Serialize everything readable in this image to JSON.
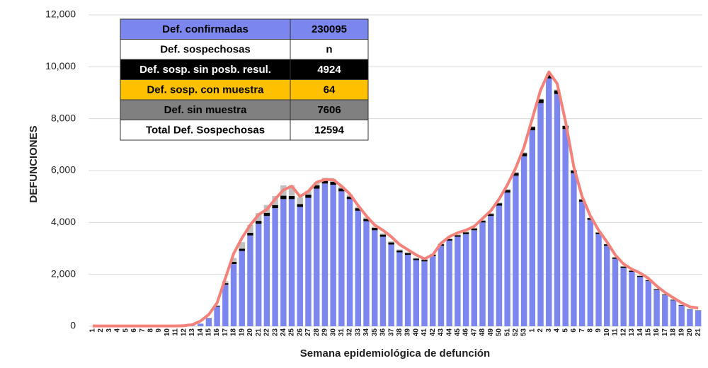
{
  "chart_data": {
    "type": "stacked_bar",
    "y_label": "DEFUNCIONES",
    "x_label": "Semana epidemiológica de defunción",
    "categories": [
      "1",
      "2",
      "3",
      "4",
      "5",
      "6",
      "7",
      "8",
      "9",
      "10",
      "11",
      "12",
      "13",
      "14",
      "15",
      "16",
      "17",
      "18",
      "19",
      "20",
      "21",
      "22",
      "23",
      "24",
      "25",
      "26",
      "27",
      "28",
      "29",
      "30",
      "31",
      "32",
      "33",
      "34",
      "35",
      "36",
      "37",
      "38",
      "39",
      "40",
      "41",
      "42",
      "43",
      "44",
      "45",
      "46",
      "47",
      "48",
      "49",
      "50",
      "51",
      "52",
      "53",
      "1",
      "2",
      "3",
      "4",
      "5",
      "6",
      "7",
      "8",
      "9",
      "10",
      "11",
      "12",
      "13",
      "14",
      "15",
      "16",
      "17",
      "18",
      "19",
      "20",
      "21"
    ],
    "series": [
      {
        "color": "#7b87ee",
        "values": [
          0,
          0,
          0,
          0,
          0,
          0,
          0,
          0,
          0,
          0,
          0,
          5,
          20,
          100,
          300,
          750,
          1600,
          2400,
          2900,
          3500,
          3950,
          4250,
          4550,
          4900,
          4900,
          4600,
          4950,
          5300,
          5500,
          5450,
          5200,
          4900,
          4450,
          4050,
          3700,
          3450,
          3150,
          2850,
          2750,
          2550,
          2500,
          2700,
          3100,
          3300,
          3450,
          3550,
          3700,
          4000,
          4250,
          4650,
          5150,
          5800,
          6550,
          7550,
          8600,
          9550,
          8950,
          7600,
          5900,
          4800,
          4100,
          3550,
          3100,
          2600,
          2250,
          2100,
          1900,
          1750,
          1400,
          1200,
          1000,
          800,
          650,
          600
        ]
      },
      {
        "color": "#000000",
        "values": [
          0,
          0,
          0,
          0,
          0,
          0,
          0,
          0,
          0,
          0,
          0,
          0,
          0,
          0,
          10,
          30,
          60,
          80,
          90,
          100,
          110,
          120,
          120,
          130,
          120,
          110,
          120,
          130,
          120,
          120,
          110,
          100,
          100,
          90,
          90,
          80,
          80,
          70,
          70,
          60,
          60,
          60,
          60,
          60,
          60,
          70,
          70,
          70,
          80,
          90,
          100,
          110,
          120,
          130,
          140,
          150,
          140,
          120,
          100,
          80,
          70,
          60,
          60,
          50,
          50,
          40,
          40,
          30,
          30,
          20,
          20,
          20,
          10,
          10
        ]
      },
      {
        "color": "#ffc000",
        "values": [
          0,
          0,
          0,
          0,
          0,
          0,
          0,
          0,
          0,
          0,
          0,
          0,
          0,
          0,
          0,
          0,
          0,
          1,
          1,
          1,
          1,
          1,
          1,
          1,
          1,
          1,
          1,
          1,
          1,
          1,
          1,
          1,
          1,
          1,
          1,
          1,
          1,
          1,
          1,
          1,
          1,
          1,
          1,
          1,
          1,
          1,
          1,
          1,
          1,
          1,
          1,
          1,
          1,
          1,
          1,
          1,
          1,
          1,
          1,
          1,
          1,
          1,
          1,
          1,
          1,
          1,
          1,
          1,
          1,
          1,
          1,
          1,
          1,
          1
        ]
      },
      {
        "color": "#c0c0c0",
        "values": [
          0,
          0,
          0,
          0,
          0,
          0,
          0,
          0,
          0,
          0,
          0,
          0,
          0,
          0,
          10,
          30,
          80,
          150,
          250,
          300,
          300,
          300,
          350,
          400,
          400,
          250,
          150,
          120,
          100,
          100,
          80,
          70,
          60,
          50,
          50,
          50,
          40,
          40,
          30,
          30,
          30,
          30,
          30,
          30,
          30,
          30,
          30,
          30,
          30,
          30,
          30,
          30,
          30,
          30,
          30,
          30,
          30,
          30,
          30,
          30,
          20,
          20,
          20,
          20,
          20,
          20,
          20,
          10,
          10,
          10,
          10,
          10,
          10,
          10
        ]
      }
    ],
    "line": {
      "color": "#f4827a",
      "values": [
        10,
        10,
        10,
        10,
        10,
        10,
        10,
        10,
        10,
        10,
        10,
        20,
        60,
        200,
        450,
        900,
        1850,
        2800,
        3400,
        3900,
        4300,
        4500,
        4900,
        5250,
        5400,
        5000,
        5200,
        5550,
        5650,
        5650,
        5400,
        5100,
        4650,
        4250,
        3900,
        3700,
        3450,
        3150,
        2950,
        2750,
        2600,
        2750,
        3200,
        3450,
        3600,
        3700,
        3850,
        4150,
        4450,
        4900,
        5450,
        6100,
        6900,
        8000,
        9100,
        9800,
        9350,
        7900,
        6150,
        5000,
        4250,
        3700,
        3250,
        2750,
        2400,
        2200,
        2050,
        1850,
        1550,
        1300,
        1100,
        900,
        750,
        700
      ]
    },
    "ylim": [
      0,
      12000
    ],
    "yticks": [
      0,
      {
        "value": 2000,
        "label": "2,000"
      },
      {
        "value": 4000,
        "label": "4,000"
      },
      {
        "value": 6000,
        "label": "6,000"
      },
      {
        "value": 8000,
        "label": "8,000"
      },
      {
        "value": 10000,
        "label": "10,000"
      },
      {
        "value": 12000,
        "label": "12,000"
      }
    ],
    "grid": true,
    "table": {
      "rows": [
        {
          "label": "Def. confirmadas",
          "value": "230095",
          "fill": "#7b87ee",
          "text_color": "#000000"
        },
        {
          "label": "Def. sospechosas",
          "value": "n",
          "fill": "#ffffff",
          "text_color": "#000000"
        },
        {
          "label": "Def. sosp. sin posb. resul.",
          "value": "4924",
          "fill": "#000000",
          "text_color": "#ffffff"
        },
        {
          "label": "Def. sosp. con  muestra",
          "value": "64",
          "fill": "#ffc000",
          "text_color": "#000000"
        },
        {
          "label": "Def. sin muestra",
          "value": "7606",
          "fill": "#808080",
          "text_color": "#000000"
        },
        {
          "label": "Total Def. Sospechosas",
          "value": "12594",
          "fill": "#ffffff",
          "text_color": "#000000"
        }
      ]
    }
  }
}
